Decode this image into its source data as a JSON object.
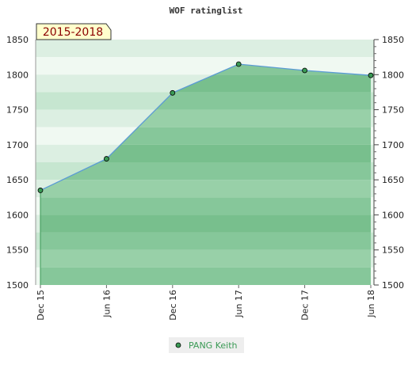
{
  "chart_data": {
    "type": "area",
    "title": "WOF ratinglist",
    "period_label": "2015-2018",
    "x": [
      "Dec 15",
      "Jun 16",
      "Dec 16",
      "Jun 17",
      "Dec 17",
      "Jun 18"
    ],
    "series": [
      {
        "name": "PANG Keith",
        "values": [
          1635,
          1680,
          1774,
          1815,
          1806,
          1799
        ]
      }
    ],
    "ylim": [
      1500,
      1850
    ],
    "yticks": [
      1500,
      1550,
      1600,
      1650,
      1700,
      1750,
      1800,
      1850
    ],
    "grid": "horizontal bands",
    "legend": "bottom-center",
    "colors": {
      "line": "#5b9bd5",
      "area": "#7fc493",
      "marker": "#3a9a55",
      "badge_fill": "#ffffcc",
      "badge_text": "#8b0000",
      "legend_text": "#3a9a55"
    }
  }
}
